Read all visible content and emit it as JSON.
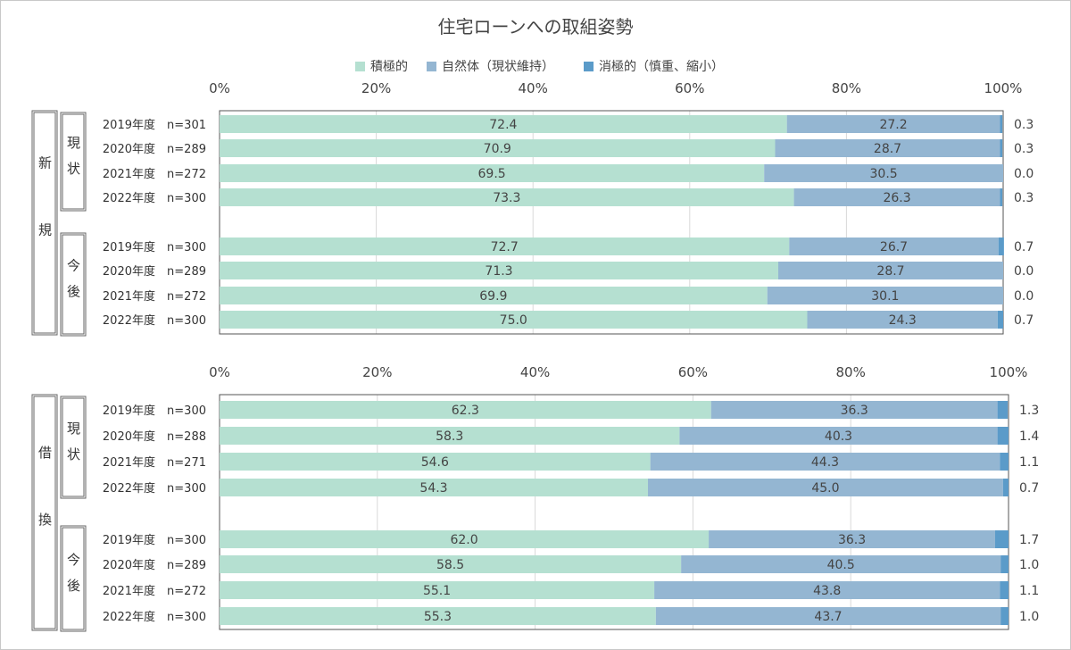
{
  "title": "住宅ローンへの取組姿勢",
  "legend": [
    {
      "label": "積極的",
      "color": "#b5e0d1"
    },
    {
      "label": "自然体（現状維持）",
      "color": "#94b6d2"
    },
    {
      "label": "消極的（慎重、縮小）",
      "color": "#5b9bc9"
    }
  ],
  "chart_data": [
    {
      "type": "bar",
      "orientation": "horizontal",
      "stacked": true,
      "section_label": "新規",
      "x_ticks": [
        "0%",
        "20%",
        "40%",
        "60%",
        "80%",
        "100%"
      ],
      "xlim": [
        0,
        100
      ],
      "groups": [
        {
          "label": "現状",
          "rows": [
            {
              "year": "2019年度",
              "n": "n=301",
              "values": [
                "72.4",
                "27.2",
                "0.3"
              ]
            },
            {
              "year": "2020年度",
              "n": "n=289",
              "values": [
                "70.9",
                "28.7",
                "0.3"
              ]
            },
            {
              "year": "2021年度",
              "n": "n=272",
              "values": [
                "69.5",
                "30.5",
                "0.0"
              ]
            },
            {
              "year": "2022年度",
              "n": "n=300",
              "values": [
                "73.3",
                "26.3",
                "0.3"
              ]
            }
          ]
        },
        {
          "label": "今後",
          "rows": [
            {
              "year": "2019年度",
              "n": "n=300",
              "values": [
                "72.7",
                "26.7",
                "0.7"
              ]
            },
            {
              "year": "2020年度",
              "n": "n=289",
              "values": [
                "71.3",
                "28.7",
                "0.0"
              ]
            },
            {
              "year": "2021年度",
              "n": "n=272",
              "values": [
                "69.9",
                "30.1",
                "0.0"
              ]
            },
            {
              "year": "2022年度",
              "n": "n=300",
              "values": [
                "75.0",
                "24.3",
                "0.7"
              ]
            }
          ]
        }
      ]
    },
    {
      "type": "bar",
      "orientation": "horizontal",
      "stacked": true,
      "section_label": "借換",
      "x_ticks": [
        "0%",
        "20%",
        "40%",
        "60%",
        "80%",
        "100%"
      ],
      "xlim": [
        0,
        100
      ],
      "groups": [
        {
          "label": "現状",
          "rows": [
            {
              "year": "2019年度",
              "n": "n=300",
              "values": [
                "62.3",
                "36.3",
                "1.3"
              ]
            },
            {
              "year": "2020年度",
              "n": "n=288",
              "values": [
                "58.3",
                "40.3",
                "1.4"
              ]
            },
            {
              "year": "2021年度",
              "n": "n=271",
              "values": [
                "54.6",
                "44.3",
                "1.1"
              ]
            },
            {
              "year": "2022年度",
              "n": "n=300",
              "values": [
                "54.3",
                "45.0",
                "0.7"
              ]
            }
          ]
        },
        {
          "label": "今後",
          "rows": [
            {
              "year": "2019年度",
              "n": "n=300",
              "values": [
                "62.0",
                "36.3",
                "1.7"
              ]
            },
            {
              "year": "2020年度",
              "n": "n=289",
              "values": [
                "58.5",
                "40.5",
                "1.0"
              ]
            },
            {
              "year": "2021年度",
              "n": "n=272",
              "values": [
                "55.1",
                "43.8",
                "1.1"
              ]
            },
            {
              "year": "2022年度",
              "n": "n=300",
              "values": [
                "55.3",
                "43.7",
                "1.0"
              ]
            }
          ]
        }
      ]
    }
  ]
}
